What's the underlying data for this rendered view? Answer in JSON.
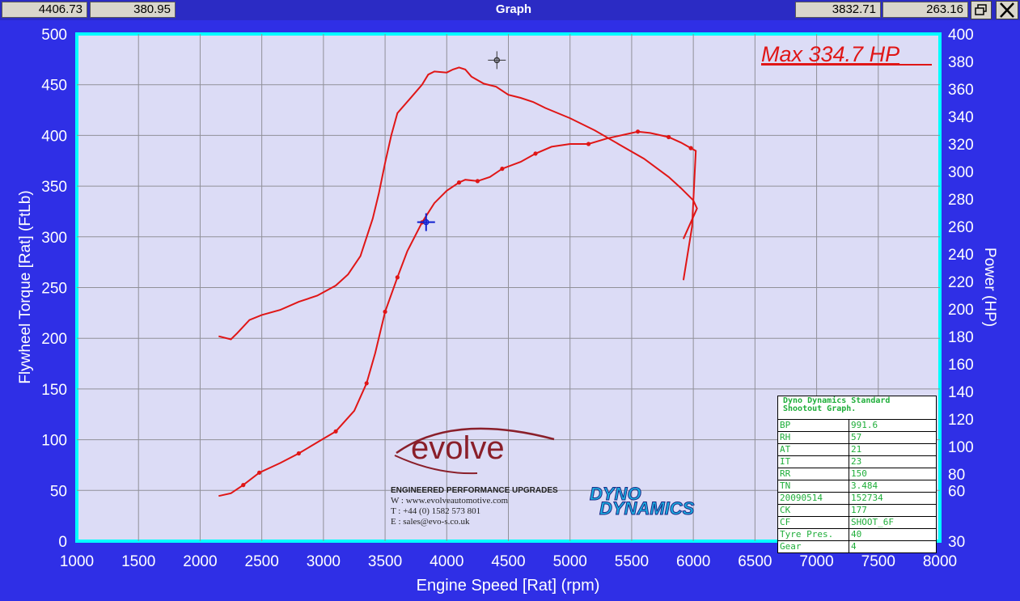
{
  "window": {
    "title": "Graph",
    "readout_left_1": "4406.73",
    "readout_left_2": "380.95",
    "readout_right_1": "3832.71",
    "readout_right_2": "263.16",
    "restore_icon": "restore-window-icon",
    "close_icon": "close-icon"
  },
  "max_label": "Max 334.7 HP",
  "colors": {
    "background": "#2f2fe6",
    "plot_bg": "#dcdcf6",
    "plot_border": "#00ffff",
    "curve": "#e01616",
    "cursor": "#1020d0"
  },
  "chart_data": {
    "type": "line",
    "xlabel": "Engine Speed [Rat] (rpm)",
    "ylabel": "Flywheel Torque [Rat] (FtLb)",
    "y2label": "Power (HP)",
    "xlim": [
      1000,
      8000
    ],
    "ylim": [
      0,
      500
    ],
    "y2lim": [
      30,
      400
    ],
    "xticks": [
      "1000",
      "1500",
      "2000",
      "2500",
      "3000",
      "3500",
      "4000",
      "4500",
      "5000",
      "5500",
      "6000",
      "6500",
      "7000",
      "7500",
      "8000"
    ],
    "yticks": [
      "0",
      "50",
      "100",
      "150",
      "200",
      "250",
      "300",
      "350",
      "400",
      "450",
      "500"
    ],
    "y2ticks": [
      "30",
      "60",
      "80",
      "100",
      "120",
      "140",
      "160",
      "180",
      "200",
      "220",
      "240",
      "260",
      "280",
      "300",
      "320",
      "340",
      "360",
      "380",
      "400"
    ],
    "grid": true,
    "series": [
      {
        "name": "",
        "axis": "left",
        "x": [
          2150,
          2250,
          2300,
          2400,
          2500,
          2650,
          2800,
          2950,
          3100,
          3200,
          3300,
          3400,
          3450,
          3500,
          3550,
          3600,
          3700,
          3800,
          3850,
          3900,
          4000,
          4050,
          4100,
          4150,
          4200,
          4300,
          4400,
          4500,
          4600,
          4700,
          4800,
          5000,
          5200,
          5400,
          5600,
          5800,
          5900,
          6000,
          6030,
          5920
        ],
        "y": [
          202,
          199,
          205,
          218,
          223,
          228,
          236,
          242,
          252,
          263,
          281,
          318,
          343,
          373,
          400,
          422,
          436,
          450,
          460,
          463,
          462,
          465,
          467,
          465,
          458,
          451,
          448,
          440,
          437,
          433,
          427,
          417,
          405,
          391,
          377,
          359,
          348,
          336,
          328,
          298
        ]
      },
      {
        "name": "",
        "axis": "right",
        "x": [
          2150,
          2250,
          2350,
          2480,
          2650,
          2800,
          2950,
          3100,
          3250,
          3350,
          3420,
          3500,
          3600,
          3680,
          3800,
          3900,
          4000,
          4100,
          4150,
          4250,
          4350,
          4450,
          4600,
          4720,
          4850,
          5000,
          5150,
          5300,
          5450,
          5550,
          5650,
          5800,
          5900,
          5980,
          6020,
          5990,
          5920
        ],
        "y": [
          64,
          66,
          72,
          81,
          88,
          95,
          103,
          111,
          126,
          146,
          168,
          198,
          223,
          242,
          263,
          277,
          286,
          292,
          294,
          293,
          296,
          302,
          307,
          313,
          318,
          320,
          320,
          324,
          327,
          329,
          328,
          325,
          321,
          317,
          315,
          260,
          221
        ]
      }
    ],
    "data_markers_torque_none": true,
    "cursor_points": [
      {
        "x": 3832.71,
        "y": 263.16
      },
      {
        "x": 4406.73,
        "y": 380.95
      }
    ]
  },
  "info_table": {
    "header_line1": "Dyno Dynamics Standard",
    "header_line2": "Shootout Graph.",
    "rows": [
      {
        "k": "BP",
        "v": "991.6"
      },
      {
        "k": "RH",
        "v": "57"
      },
      {
        "k": "AT",
        "v": "21"
      },
      {
        "k": "IT",
        "v": "23"
      },
      {
        "k": "RR",
        "v": "150"
      },
      {
        "k": "TN",
        "v": "3.484"
      },
      {
        "k": "20090514",
        "v": "152734"
      },
      {
        "k": "CK",
        "v": "177"
      },
      {
        "k": "CF",
        "v": "SHOOT_6F"
      },
      {
        "k": "Tyre Pres.",
        "v": "40"
      },
      {
        "k": "Gear",
        "v": "4"
      }
    ]
  },
  "evolve": {
    "logo": "evolve",
    "tagline": "ENGINEERED PERFORMANCE UPGRADES",
    "web": "W : www.evolveautomotive.com",
    "tel": "T : +44 (0) 1582 573 801",
    "email": "E : sales@evo-s.co.uk"
  },
  "dyno_logo": {
    "line1": "DYNO",
    "line2": "DYNAMICS"
  }
}
